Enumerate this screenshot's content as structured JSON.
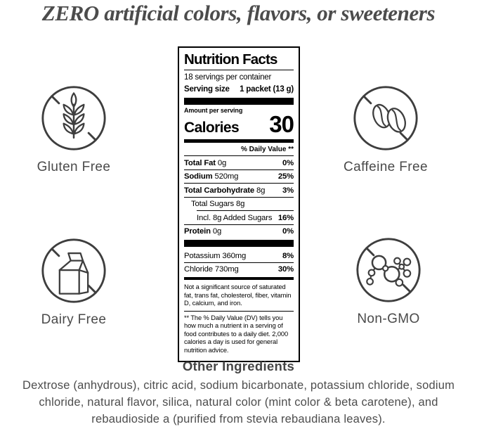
{
  "headline": {
    "text": "ZERO artificial colors, flavors, or sweeteners"
  },
  "badges": [
    {
      "label": "Gluten Free",
      "icon": "wheat-icon"
    },
    {
      "label": "Caffeine Free",
      "icon": "coffee-beans-icon"
    },
    {
      "label": "Dairy Free",
      "icon": "milk-carton-icon"
    },
    {
      "label": "Non-GMO",
      "icon": "molecule-icon"
    }
  ],
  "nutrition_label": {
    "title": "Nutrition Facts",
    "servings_per_container": "18 servings per container",
    "serving_size_label": "Serving size",
    "serving_size_value": "1 packet (13 g)",
    "amount_per_serving": "Amount per serving",
    "calories_label": "Calories",
    "calories_value": "30",
    "daily_value_header": "% Daily Value **",
    "main_rows": [
      {
        "name": "Total Fat",
        "amount": "0g",
        "dv": "0%",
        "bold_name": true,
        "indent": 0,
        "indent_mode": "pad"
      },
      {
        "name": "Sodium",
        "amount": "520mg",
        "dv": "25%",
        "bold_name": true,
        "indent": 0,
        "indent_mode": "pad"
      },
      {
        "name": "Total Carbohydrate",
        "amount": "8g",
        "dv": "3%",
        "bold_name": true,
        "indent": 0,
        "indent_mode": "pad"
      },
      {
        "name": "Total Sugars",
        "amount": "8g",
        "dv": "",
        "bold_name": false,
        "indent": 10,
        "indent_mode": "pad"
      },
      {
        "name": "Incl. 8g Added Sugars",
        "amount": "",
        "dv": "16%",
        "bold_name": false,
        "indent": 18,
        "indent_mode": "margin"
      },
      {
        "name": "Protein",
        "amount": "0g",
        "dv": "0%",
        "bold_name": true,
        "indent": 0,
        "indent_mode": "pad"
      }
    ],
    "mineral_rows": [
      {
        "name": "Potassium",
        "amount": "360mg",
        "dv": "8%",
        "bold_name": false,
        "indent": 0,
        "indent_mode": "pad"
      },
      {
        "name": "Chloride",
        "amount": "730mg",
        "dv": "30%",
        "bold_name": false,
        "indent": 0,
        "indent_mode": "pad"
      }
    ],
    "footnote_sources": "Not a significant source of saturated fat, trans fat, cholesterol, fiber, vitamin D, calcium, and iron.",
    "footnote_dv": "** The % Daily Value (DV) tells you how much a nutrient in a serving of food contributes to a daily diet. 2,000 calories a day is used for general nutrition advice."
  },
  "other_ingredients": {
    "title": "Other Ingredients",
    "text": "Dextrose (anhydrous), citric acid, sodium bicarbonate, potassium chloride, sodium chloride, natural flavor, silica, natural color (mint color & beta carotene), and rebaudioside a (purified from stevia rebaudiana leaves)."
  },
  "colors": {
    "ink": "#000000",
    "icon_stroke": "#3e3e3e",
    "gray_text": "#4c4c4c"
  }
}
